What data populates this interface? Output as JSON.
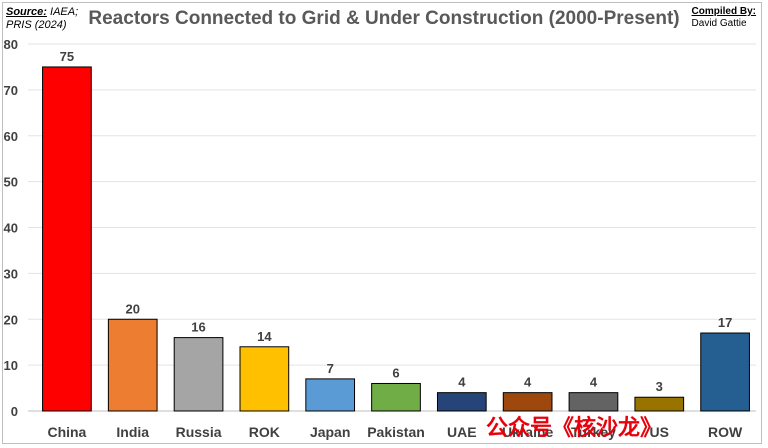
{
  "header": {
    "source_label": "Source:",
    "source_line1": "IAEA;",
    "source_line2": "PRIS (2024)",
    "compiled_label": "Compiled By:",
    "compiled_name": "David Gattie"
  },
  "watermark": "公众号《核沙龙》",
  "chart_data": {
    "type": "bar",
    "title": "Reactors Connected to Grid & Under Construction (2000-Present)",
    "xlabel": "",
    "ylabel": "",
    "ylim": [
      0,
      80
    ],
    "yticks": [
      0,
      10,
      20,
      30,
      40,
      50,
      60,
      70,
      80
    ],
    "grid": true,
    "legend": "none",
    "categories": [
      "China",
      "India",
      "Russia",
      "ROK",
      "Japan",
      "Pakistan",
      "UAE",
      "Ukraine",
      "Turkey",
      "US",
      "ROW"
    ],
    "values": [
      75,
      20,
      16,
      14,
      7,
      6,
      4,
      4,
      4,
      3,
      17
    ],
    "colors": [
      "#ff0000",
      "#ed7d31",
      "#a5a5a5",
      "#ffc000",
      "#5b9bd5",
      "#70ad47",
      "#264478",
      "#9e480e",
      "#636363",
      "#997300",
      "#255e91"
    ]
  }
}
